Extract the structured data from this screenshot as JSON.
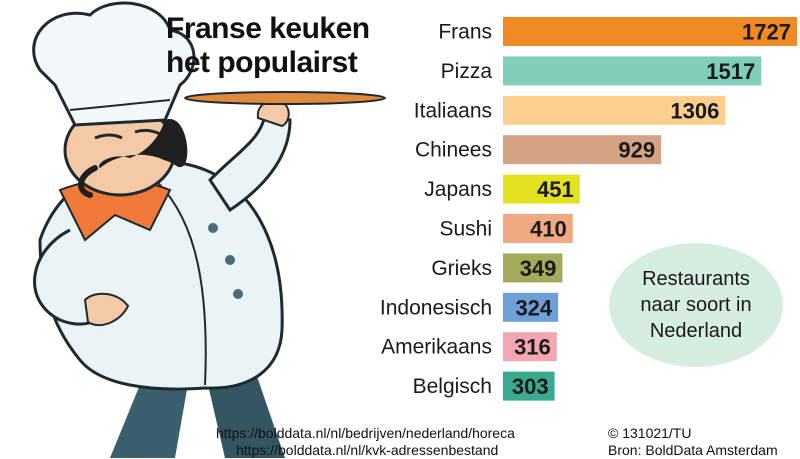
{
  "title_line1": "Franse keuken",
  "title_line2": "het populairst",
  "annotation": "Restaurants naar soort in Nederland",
  "sources": {
    "url1": "https://bolddata.nl/nl/bedrijven/nederland/horeca",
    "url2": "https://bolddata.nl/nl/kvk-adressenbestand",
    "credit": "© 131021/TU",
    "source": "Bron: BoldData Amsterdam"
  },
  "chart_data": {
    "type": "bar",
    "orientation": "horizontal",
    "categories": [
      "Frans",
      "Pizza",
      "Italiaans",
      "Chinees",
      "Japans",
      "Sushi",
      "Grieks",
      "Indonesisch",
      "Amerikaans",
      "Belgisch"
    ],
    "values": [
      1727,
      1517,
      1306,
      929,
      451,
      410,
      349,
      324,
      316,
      303
    ],
    "colors": [
      "#f08a24",
      "#7fcfb8",
      "#fdcf8e",
      "#d4a383",
      "#e3e21f",
      "#f1a983",
      "#a4aa5a",
      "#6f9fd8",
      "#f4a6b2",
      "#3aaa8e"
    ],
    "data_labels": true,
    "title": "",
    "xlabel": "",
    "ylabel": ""
  }
}
